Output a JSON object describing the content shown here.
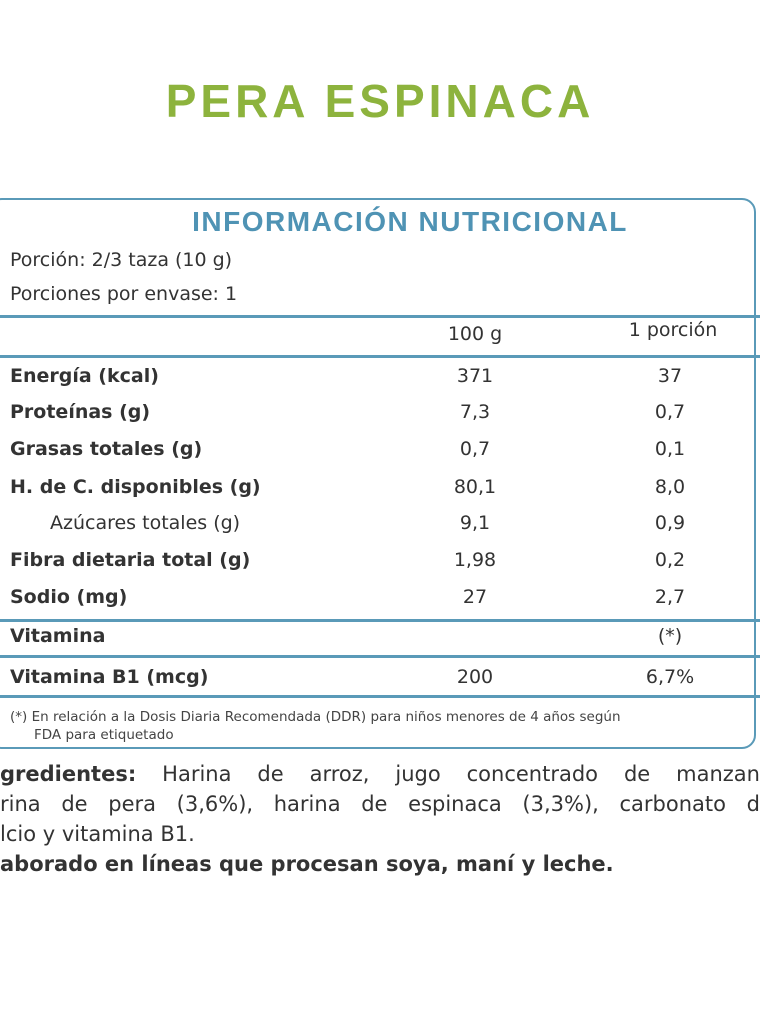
{
  "title": "PERA ESPINACA",
  "panel": {
    "heading": "INFORMACIÓN NUTRICIONAL",
    "serving": "Porción: 2/3 taza  (10 g)",
    "servings_per_container": "Porciones por envase: 1",
    "columns": [
      "100 g",
      "1 porción"
    ],
    "rows": [
      {
        "label": "Energía (kcal)",
        "v100": "371",
        "vpor": "37"
      },
      {
        "label": "Proteínas (g)",
        "v100": "7,3",
        "vpor": "0,7"
      },
      {
        "label": "Grasas totales (g)",
        "v100": "0,7",
        "vpor": "0,1"
      },
      {
        "label": "H. de C. disponibles (g)",
        "v100": "80,1",
        "vpor": "8,0"
      },
      {
        "label": "Azúcares totales (g)",
        "v100": "9,1",
        "vpor": "0,9"
      },
      {
        "label": "Fibra dietaria total (g)",
        "v100": "1,98",
        "vpor": "0,2"
      },
      {
        "label": "Sodio (mg)",
        "v100": "27",
        "vpor": "2,7"
      }
    ],
    "vitamin_header": {
      "label": "Vitamina",
      "vpor": "(*)"
    },
    "vitamin_row": {
      "label": "Vitamina B1 (mcg)",
      "v100": "200",
      "vpor": "6,7%"
    },
    "footnote_1": "(*) En relación a la Dosis Diaria Recomendada (DDR) para niños menores de 4 años según",
    "footnote_2": "FDA para etiquetado"
  },
  "ingredients": {
    "label": "gredientes:",
    "line1": "Harina de arroz, jugo concentrado de manzan",
    "line2": "rina de pera (3,6%), harina de espinaca (3,3%), carbonato d",
    "line3": "lcio y vitamina B1.",
    "allergen": "aborado en líneas que procesan soya, maní y leche."
  },
  "colors": {
    "title": "#8db33d",
    "accent": "#4f93b4"
  }
}
